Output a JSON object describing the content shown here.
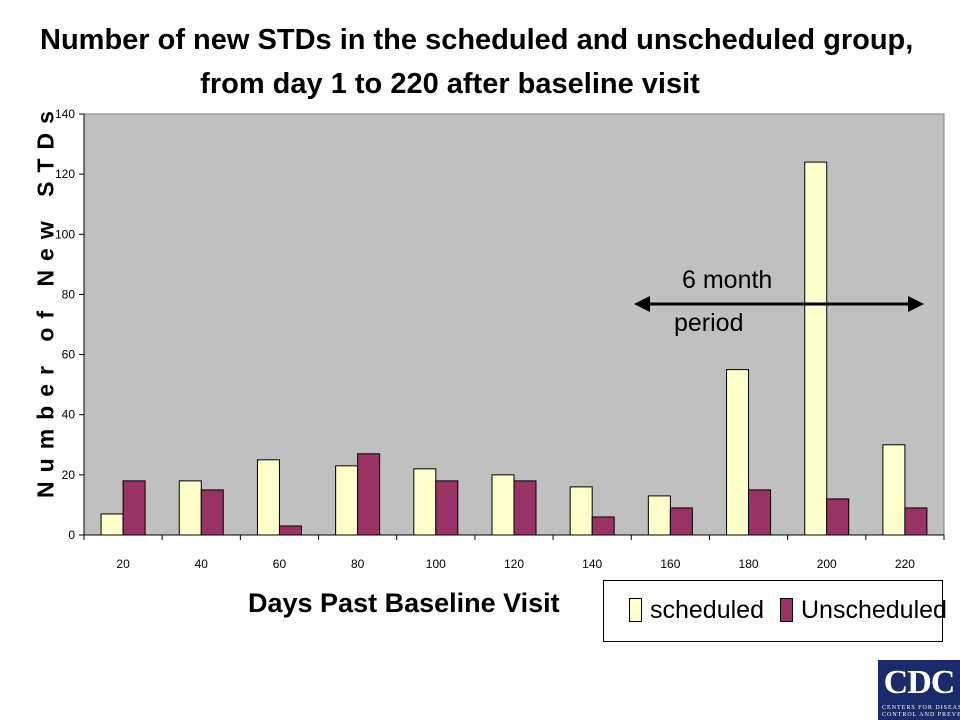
{
  "chart_data": {
    "type": "bar",
    "title": "Number of new STDs in the scheduled and unscheduled group,",
    "subtitle": "from day 1 to 220 after baseline visit",
    "xlabel": "Days Past Baseline Visit",
    "ylabel": "Number of New STDs",
    "categories": [
      "20",
      "40",
      "60",
      "80",
      "100",
      "120",
      "140",
      "160",
      "180",
      "200",
      "220"
    ],
    "series": [
      {
        "name": "scheduled",
        "color": "#ffffcc",
        "values": [
          7,
          18,
          25,
          23,
          22,
          20,
          16,
          13,
          55,
          124,
          30
        ]
      },
      {
        "name": "Unscheduled",
        "color": "#993366",
        "values": [
          18,
          15,
          3,
          27,
          18,
          18,
          6,
          9,
          15,
          12,
          9
        ]
      }
    ],
    "ylim": [
      0,
      140
    ],
    "yticks": [
      "0",
      "20",
      "40",
      "60",
      "80",
      "100",
      "120",
      "140"
    ],
    "grid": false,
    "plot_background": "#c0c0c0",
    "legend_position": "bottom-right",
    "annotation": {
      "line1": "6 month",
      "line2": "period"
    }
  },
  "logo": {
    "text": "CDC",
    "sub1": "CENTERS FOR DISEASE",
    "sub2": "CONTROL AND PREVENTION"
  }
}
